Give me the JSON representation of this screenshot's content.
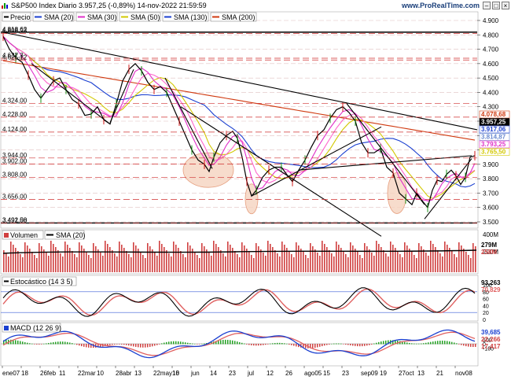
{
  "header": {
    "title": "S&P500 Index Diario 3.957,25 (-0,89%) 14-nov-2022 21:59:59",
    "website": "www.ProRealTime.com"
  },
  "chart_data": [
    {
      "type": "line",
      "panel": "price",
      "legend": [
        "Precio",
        "SMA (20)",
        "SMA (30)",
        "SMA (50)",
        "SMA (130)",
        "SMA (200)"
      ],
      "colors": {
        "price": "#000000",
        "sma20": "#e030c8",
        "sma30": "#ff66cc",
        "sma50": "#d2c800",
        "sma130": "#1a3fd0",
        "sma200": "#d03a10"
      },
      "right_ticks": [
        "4.900",
        "4.800",
        "4.700",
        "4.600",
        "4.500",
        "4.400",
        "4.300",
        "4.200",
        "4.100",
        "4.000",
        "3.900",
        "3.800",
        "3.700",
        "3.600",
        "3.500",
        "3.400"
      ],
      "ylim": [
        3400,
        4930
      ],
      "left_labels": [
        "4.818,62",
        "4.808,93",
        "4.637,3",
        "4.625,12",
        "4.324,00",
        "4.228,00",
        "4.124,00",
        "3.944,00",
        "3.902,00",
        "3.808,00",
        "3.656,00",
        "3.492,00",
        "3.491,58"
      ],
      "right_value_labels": [
        {
          "text": "4.078,68",
          "value": 4078.68,
          "color": "#d03a10"
        },
        {
          "text": "3.957,25",
          "value": 3957.25,
          "color": "#000000"
        },
        {
          "text": "3.917,06",
          "value": 3917.06,
          "color": "#1a3fd0"
        },
        {
          "text": "3.814,87",
          "value": 3814.87,
          "color": "#6a8ad0"
        },
        {
          "text": "3.793,25",
          "value": 3793.25,
          "color": "#e030c8"
        },
        {
          "text": "3.765,50",
          "value": 3765.5,
          "color": "#d2c800"
        }
      ],
      "x_labels": [
        "ene07",
        "18",
        "26feb",
        "11",
        "22mar",
        "10",
        "28abr",
        "13",
        "22may10",
        "18",
        "jun",
        "14",
        "23",
        "jul",
        "12",
        "26",
        "ago05",
        "15",
        "23",
        "sep09",
        "19",
        "27oct",
        "13",
        "21",
        "nov08"
      ]
    },
    {
      "type": "bar",
      "panel": "volume",
      "legend": [
        "Volumen",
        "SMA (20)"
      ],
      "right_ticks": [
        "400M",
        "200M"
      ],
      "right_value_labels": [
        "279M",
        "258M"
      ]
    },
    {
      "type": "line",
      "panel": "stochastic",
      "legend": [
        "Estocástico (14 3 5)"
      ],
      "right_ticks": [
        "100",
        "80",
        "60",
        "40",
        "20",
        "0"
      ],
      "right_value_labels": [
        "93,263",
        "70,829"
      ]
    },
    {
      "type": "line",
      "panel": "macd",
      "legend": [
        "MACD (12 26 9)"
      ],
      "right_ticks": [
        "100",
        "0",
        "-100"
      ],
      "right_value_labels": [
        "39,685",
        "22,266",
        "17,417"
      ]
    }
  ]
}
